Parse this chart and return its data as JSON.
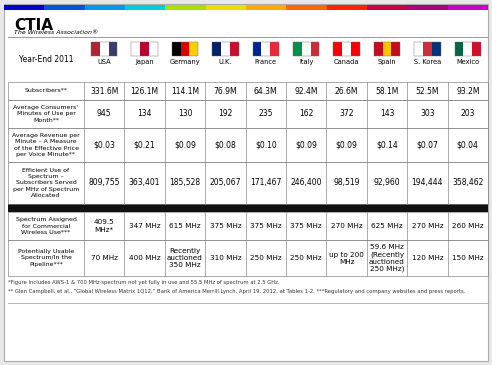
{
  "title": "CTIA",
  "subtitle": "The Wireless Association®",
  "year_label": "Year-End 2011",
  "countries": [
    "USA",
    "Japan",
    "Germany",
    "U.K.",
    "France",
    "Italy",
    "Canada",
    "Spain",
    "S. Korea",
    "Mexico"
  ],
  "rows": [
    {
      "label": "Subscribers**",
      "values": [
        "331.6M",
        "126.1M",
        "114.1M",
        "76.9M",
        "64.3M",
        "92.4M",
        "26.6M",
        "58.1M",
        "52.5M",
        "93.2M"
      ]
    },
    {
      "label": "Average Consumers'\nMinutes of Use per\nMonth**",
      "values": [
        "945",
        "134",
        "130",
        "192",
        "235",
        "162",
        "372",
        "143",
        "303",
        "203"
      ]
    },
    {
      "label": "Average Revenue per\nMinute – A Measure\nof the Effective Price\nper Voice Minute**",
      "values": [
        "$0.03",
        "$0.21",
        "$0.09",
        "$0.08",
        "$0.10",
        "$0.09",
        "$0.09",
        "$0.14",
        "$0.07",
        "$0.04"
      ]
    },
    {
      "label": "Efficient Use of\nSpectrum –\nSubscribers Served\nper MHz of Spectrum\nAllocated",
      "values": [
        "809,755",
        "363,401",
        "185,528",
        "205,067",
        "171,467",
        "246,400",
        "98,519",
        "92,960",
        "194,444",
        "358,462"
      ]
    }
  ],
  "spectrum_rows": [
    {
      "label": "Spectrum Assigned\nfor Commercial\nWireless Use***",
      "values": [
        "409.5\nMHz*",
        "347 MHz",
        "615 MHz",
        "375 MHz",
        "375 MHz",
        "375 MHz",
        "270 MHz",
        "625 MHz",
        "270 MHz",
        "260 MHz"
      ]
    },
    {
      "label": "Potentially Usable\nSpectrum/In the\nPipeline***",
      "values": [
        "70 MHz",
        "400 MHz",
        "Recently\nauctioned\n350 MHz",
        "310 MHz",
        "250 MHz",
        "250 MHz",
        "up to 200\nMHz",
        "59.6 MHz\n(Recently\nauctioned\n250 MHz)",
        "120 MHz",
        "150 MHz"
      ]
    }
  ],
  "footnote1": "*Figure includes AWS-1 & 700 MHz spectrum not yet fully in use and 55.5 MHz of spectrum at 2.5 GHz.",
  "footnote2": "** Glen Campbell, et al., “Global Wireless Matrix 1Q12,” Bank of America Merrill Lynch, April 19, 2012, at Tables 1-2. ***Regulatory and company websites and press reports.",
  "rainbow_colors": [
    "#0000cc",
    "#0055dd",
    "#0099ee",
    "#00ccdd",
    "#aadd00",
    "#eedd00",
    "#ffaa00",
    "#ff6600",
    "#ff2200",
    "#cc0044",
    "#aa0088",
    "#cc00cc"
  ],
  "flag_colors": {
    "USA": [
      "#B22234",
      "#FFFFFF",
      "#3C3B6E"
    ],
    "Japan": [
      "#FFFFFF",
      "#BC002D",
      "#FFFFFF"
    ],
    "Germany": [
      "#000000",
      "#DD0000",
      "#FFCE00"
    ],
    "U.K.": [
      "#012169",
      "#FFFFFF",
      "#C8102E"
    ],
    "France": [
      "#002395",
      "#FFFFFF",
      "#ED2939"
    ],
    "Italy": [
      "#009246",
      "#FFFFFF",
      "#CE2B37"
    ],
    "Canada": [
      "#FF0000",
      "#FFFFFF",
      "#FF0000"
    ],
    "Spain": [
      "#c60b1e",
      "#ffc400",
      "#c60b1e"
    ],
    "S. Korea": [
      "#FFFFFF",
      "#CD2E3A",
      "#003478"
    ],
    "Mexico": [
      "#006847",
      "#FFFFFF",
      "#CE1126"
    ]
  }
}
